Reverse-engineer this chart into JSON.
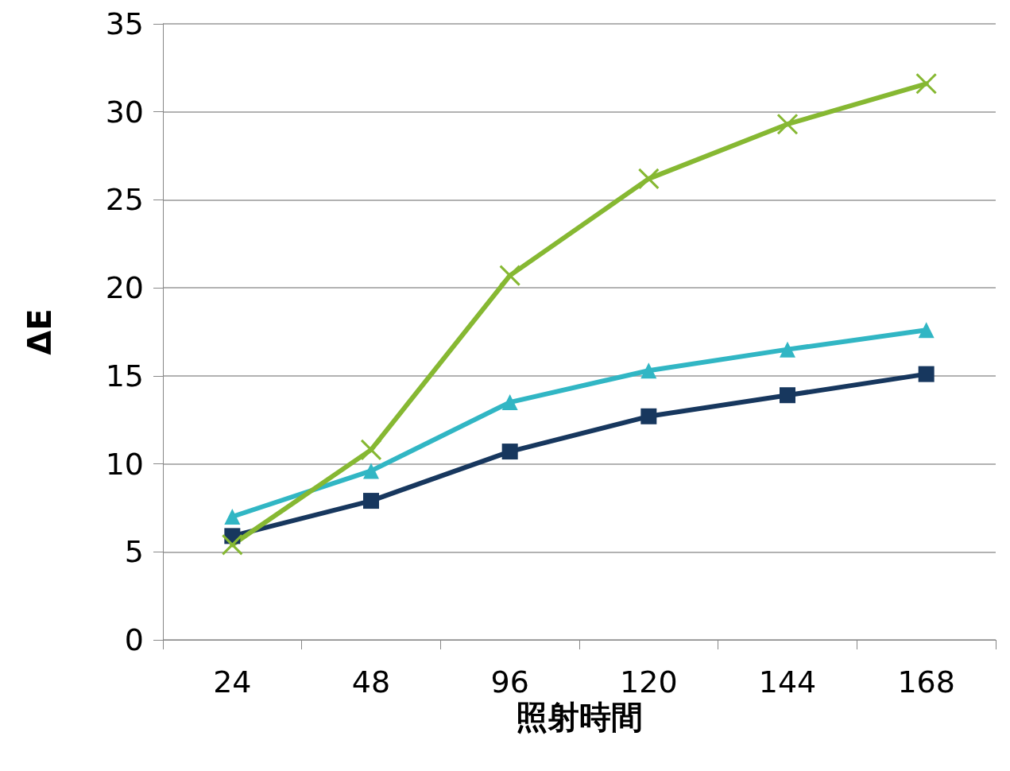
{
  "chart_data": {
    "type": "line",
    "ylabel": "ΔE",
    "xlabel": "照射時間",
    "categories": [
      "24",
      "48",
      "96",
      "120",
      "144",
      "168"
    ],
    "series": [
      {
        "color": "#17375e",
        "marker": "square",
        "values": [
          5.9,
          7.9,
          10.7,
          12.7,
          13.9,
          15.1
        ]
      },
      {
        "color": "#31b6c4",
        "marker": "triangle",
        "values": [
          7.0,
          9.6,
          13.5,
          15.3,
          16.5,
          17.6
        ]
      },
      {
        "color": "#86b832",
        "marker": "cross",
        "values": [
          5.4,
          10.8,
          20.7,
          26.2,
          29.3,
          31.6
        ]
      }
    ],
    "ylim": [
      0,
      35
    ],
    "yticks": [
      0,
      5,
      10,
      15,
      20,
      25,
      30,
      35
    ],
    "grid": "y"
  }
}
